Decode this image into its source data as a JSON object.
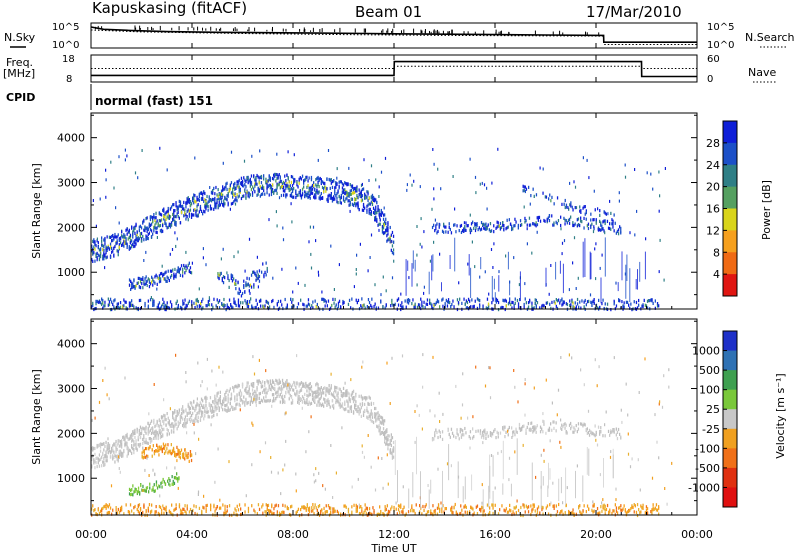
{
  "header": {
    "station": "Kapuskasing (fitACF)",
    "beam": "Beam 01",
    "date": "17/Mar/2010"
  },
  "noise_panel": {
    "left_label": "N.Sky",
    "right_label": "N.Search",
    "left_ticks": [
      "10^5",
      "10^0"
    ],
    "right_ticks": [
      "10^5",
      "10^0"
    ],
    "nsky_series": [
      {
        "t": 0.0,
        "v": 5.0
      },
      {
        "t": 0.5,
        "v": 4.4
      },
      {
        "t": 1.5,
        "v": 4.1
      },
      {
        "t": 3.0,
        "v": 3.8
      },
      {
        "t": 5.0,
        "v": 3.6
      },
      {
        "t": 7.0,
        "v": 3.5
      },
      {
        "t": 9.0,
        "v": 3.4
      },
      {
        "t": 11.0,
        "v": 3.3
      },
      {
        "t": 12.0,
        "v": 3.2
      },
      {
        "t": 14.0,
        "v": 3.1
      },
      {
        "t": 16.0,
        "v": 3.0
      },
      {
        "t": 18.0,
        "v": 2.9
      },
      {
        "t": 20.3,
        "v": 2.8
      },
      {
        "t": 20.31,
        "v": 1.0
      },
      {
        "t": 24.0,
        "v": 1.0
      }
    ],
    "nsearch_series": [
      {
        "t": 0.0,
        "v": 4.2
      },
      {
        "t": 2.0,
        "v": 3.7
      },
      {
        "t": 6.0,
        "v": 3.3
      },
      {
        "t": 10.0,
        "v": 3.0
      },
      {
        "t": 14.0,
        "v": 2.8
      },
      {
        "t": 20.3,
        "v": 2.6
      },
      {
        "t": 20.31,
        "v": 0.4
      },
      {
        "t": 24.0,
        "v": 0.4
      }
    ]
  },
  "freq_panel": {
    "left_label_line1": "Freq.",
    "left_label_line2": "[MHz]",
    "right_label": "Nave",
    "left_ticks": [
      "18",
      "8"
    ],
    "right_ticks": [
      "60",
      "0"
    ],
    "freq_series": [
      {
        "t": 0.0,
        "v": 10
      },
      {
        "t": 12.0,
        "v": 10
      },
      {
        "t": 12.01,
        "v": 16
      },
      {
        "t": 21.8,
        "v": 16
      },
      {
        "t": 21.81,
        "v": 9.5
      },
      {
        "t": 24.0,
        "v": 9.5
      }
    ],
    "nave_series": [
      {
        "t": 0.0,
        "v": 30
      },
      {
        "t": 12.0,
        "v": 30
      },
      {
        "t": 12.01,
        "v": 36
      },
      {
        "t": 21.8,
        "v": 36
      },
      {
        "t": 21.81,
        "v": 30
      },
      {
        "t": 24.0,
        "v": 30
      }
    ]
  },
  "cpid_panel": {
    "label": "CPID",
    "value": "normal (fast) 151"
  },
  "chart_data": [
    {
      "type": "heatmap",
      "quantity": "Power",
      "ylabel": "Slant Range [km]",
      "xlabel": "Time UT",
      "x_ticks": [
        "00:00",
        "04:00",
        "08:00",
        "12:00",
        "16:00",
        "20:00",
        "00:00"
      ],
      "y_ticks": [
        "1000",
        "2000",
        "3000",
        "4000"
      ],
      "xlim": [
        0,
        24
      ],
      "ylim": [
        180,
        4550
      ],
      "colorbar_label": "Power [dB]",
      "colorbar_ticks": [
        "4",
        "8",
        "12",
        "16",
        "20",
        "24",
        "28"
      ],
      "colorbar_colors": [
        "#0f1fd8",
        "#1c50c8",
        "#2f7f86",
        "#55a060",
        "#d9d41a",
        "#f6a01e",
        "#f06a14",
        "#e01612"
      ],
      "features": [
        {
          "t0": 0.0,
          "t1": 12.0,
          "r": [
            [
              0.0,
              1500
            ],
            [
              1.0,
              1650
            ],
            [
              2.0,
              1950
            ],
            [
              3.0,
              2250
            ],
            [
              4.0,
              2500
            ],
            [
              5.0,
              2700
            ],
            [
              6.0,
              2900
            ],
            [
              7.0,
              3000
            ],
            [
              8.0,
              2950
            ],
            [
              9.0,
              2900
            ],
            [
              10.0,
              2800
            ],
            [
              11.0,
              2600
            ],
            [
              11.5,
              2200
            ],
            [
              12.0,
              1600
            ]
          ],
          "width": 250,
          "density": 0.75,
          "core": 0.25
        },
        {
          "t0": 1.5,
          "t1": 4.0,
          "r": [
            [
              1.5,
              750
            ],
            [
              2.5,
              850
            ],
            [
              3.5,
              1050
            ],
            [
              4.0,
              1150
            ]
          ],
          "width": 120,
          "density": 0.7,
          "core": 0.2
        },
        {
          "t0": 5.0,
          "t1": 7.0,
          "r": [
            [
              5.0,
              1000
            ],
            [
              6.0,
              650
            ],
            [
              7.0,
              1200
            ]
          ],
          "width": 180,
          "density": 0.45,
          "core": 0.15
        },
        {
          "t0": 13.5,
          "t1": 21.0,
          "r": [
            [
              13.5,
              2000
            ],
            [
              16.0,
              2050
            ],
            [
              18.0,
              2200
            ],
            [
              20.0,
              2100
            ],
            [
              21.0,
              2000
            ]
          ],
          "width": 120,
          "density": 0.4,
          "core": 0.05
        },
        {
          "t0": 17.0,
          "t1": 21.0,
          "r": [
            [
              17.0,
              2900
            ],
            [
              19.0,
              2500
            ],
            [
              21.0,
              2200
            ]
          ],
          "width": 90,
          "density": 0.3,
          "core": 0.05
        },
        {
          "t0": 0.0,
          "t1": 22.5,
          "r": [
            [
              0.0,
              300
            ],
            [
              22.5,
              300
            ]
          ],
          "width": 140,
          "density": 0.45,
          "core": 0.1
        }
      ]
    },
    {
      "type": "heatmap",
      "quantity": "Velocity",
      "ylabel": "Slant Range [km]",
      "xlabel": "Time UT",
      "x_ticks": [
        "00:00",
        "04:00",
        "08:00",
        "12:00",
        "16:00",
        "20:00",
        "00:00"
      ],
      "y_ticks": [
        "1000",
        "2000",
        "3000",
        "4000"
      ],
      "xlim": [
        0,
        24
      ],
      "ylim": [
        180,
        4550
      ],
      "colorbar_label": "Velocity [m s⁻¹]",
      "colorbar_ticks": [
        "1000",
        "500",
        "100",
        "25",
        "-25",
        "-100",
        "-500",
        "-1000"
      ],
      "colorbar_colors": [
        "#1e30c8",
        "#2f72b4",
        "#3fa050",
        "#7ac83a",
        "#c8c8c8",
        "#f0a020",
        "#f07018",
        "#e03010",
        "#e01010"
      ],
      "features": [
        {
          "t0": 0.0,
          "t1": 12.0,
          "r": [
            [
              0.0,
              1500
            ],
            [
              1.0,
              1650
            ],
            [
              2.0,
              1950
            ],
            [
              3.0,
              2250
            ],
            [
              4.0,
              2500
            ],
            [
              5.0,
              2700
            ],
            [
              6.0,
              2900
            ],
            [
              7.0,
              3000
            ],
            [
              8.0,
              2950
            ],
            [
              9.0,
              2900
            ],
            [
              10.0,
              2800
            ],
            [
              11.0,
              2600
            ],
            [
              11.5,
              2200
            ],
            [
              12.0,
              1600
            ]
          ],
          "width": 250,
          "density": 0.75,
          "color": "gray"
        },
        {
          "t0": 2.0,
          "t1": 4.0,
          "r": [
            [
              2.0,
              1600
            ],
            [
              3.0,
              1700
            ],
            [
              4.0,
              1500
            ]
          ],
          "width": 120,
          "density": 0.7,
          "color": "orange"
        },
        {
          "t0": 1.5,
          "t1": 3.5,
          "r": [
            [
              1.5,
              750
            ],
            [
              2.5,
              850
            ],
            [
              3.5,
              1050
            ]
          ],
          "width": 110,
          "density": 0.75,
          "color": "green"
        },
        {
          "t0": 13.5,
          "t1": 21.0,
          "r": [
            [
              13.5,
              2000
            ],
            [
              16.0,
              2050
            ],
            [
              18.0,
              2200
            ],
            [
              20.0,
              2100
            ],
            [
              21.0,
              2000
            ]
          ],
          "width": 120,
          "density": 0.4,
          "color": "gray"
        },
        {
          "t0": 0.0,
          "t1": 22.5,
          "r": [
            [
              0.0,
              300
            ],
            [
              22.5,
              300
            ]
          ],
          "width": 150,
          "density": 0.5,
          "color": "orange"
        }
      ]
    }
  ]
}
